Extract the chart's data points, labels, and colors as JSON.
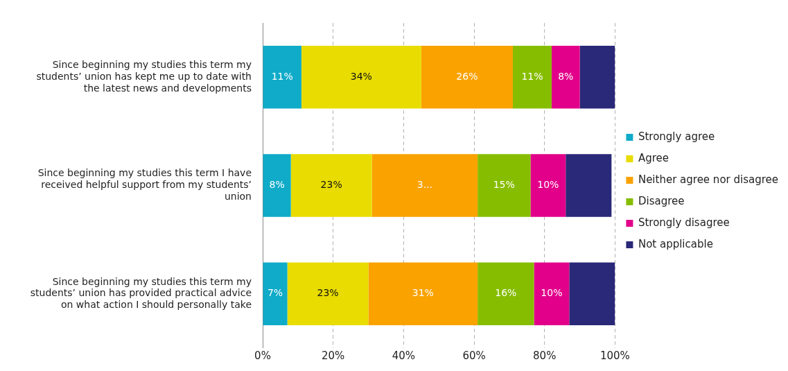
{
  "chart_data": {
    "type": "bar",
    "orientation": "horizontal",
    "stacked": true,
    "categories": [
      "Since beginning my studies this term my students’ union has kept me up to date with the latest news and developments",
      "Since beginning my studies this term I have received helpful support from my students’ union",
      "Since beginning my studies this term my students’ union has provided practical advice on what action I should personally take"
    ],
    "series": [
      {
        "name": "Strongly agree",
        "color": "#0fabc8",
        "values": [
          11,
          8,
          7
        ],
        "value_labels": [
          "11%",
          "8%",
          "7%"
        ]
      },
      {
        "name": "Agree",
        "color": "#e8dc00",
        "values": [
          34,
          23,
          23
        ],
        "value_labels": [
          "34%",
          "23%",
          "23%"
        ]
      },
      {
        "name": "Neither agree nor disagree",
        "color": "#f9a200",
        "values": [
          26,
          30,
          31
        ],
        "value_labels": [
          "26%",
          "3...",
          "31%"
        ]
      },
      {
        "name": "Disagree",
        "color": "#86bd00",
        "values": [
          11,
          15,
          16
        ],
        "value_labels": [
          "11%",
          "15%",
          "16%"
        ]
      },
      {
        "name": "Strongly disagree",
        "color": "#e2008a",
        "values": [
          8,
          10,
          10
        ],
        "value_labels": [
          "8%",
          "10%",
          "10%"
        ]
      },
      {
        "name": "Not applicable",
        "color": "#2a2878",
        "values": [
          10,
          13,
          13
        ],
        "value_labels": [
          null,
          null,
          null
        ]
      }
    ],
    "xlim": [
      0,
      100
    ],
    "xticks": [
      {
        "value": 0,
        "label": "0%"
      },
      {
        "value": 20,
        "label": "20%"
      },
      {
        "value": 40,
        "label": "40%"
      },
      {
        "value": 60,
        "label": "60%"
      },
      {
        "value": 80,
        "label": "80%"
      },
      {
        "value": 100,
        "label": "100%"
      }
    ],
    "grid": "x",
    "legend": "right"
  }
}
